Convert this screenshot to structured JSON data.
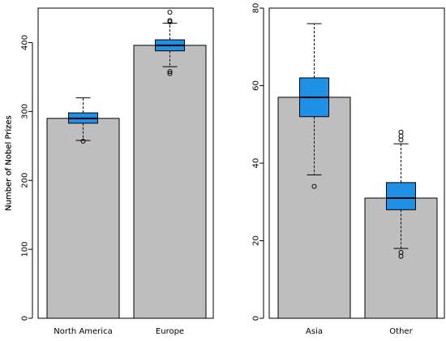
{
  "chart_data": [
    {
      "type": "bar",
      "categories": [
        "North America",
        "Europe"
      ],
      "values": [
        290,
        396
      ],
      "ylabel": "Number of Nobel Prizes",
      "ylim": [
        0,
        450
      ],
      "yticks": [
        0,
        100,
        200,
        300,
        400
      ],
      "grid": false,
      "bar_color": "#bebebe",
      "box_color": "#1e90e6",
      "boxplots": [
        {
          "category": "North America",
          "whisker_low": 258,
          "q1": 283,
          "median": 290,
          "q3": 298,
          "whisker_high": 320,
          "outliers": [
            257
          ]
        },
        {
          "category": "Europe",
          "whisker_low": 365,
          "q1": 388,
          "median": 396,
          "q3": 404,
          "whisker_high": 428,
          "outliers": [
            355,
            358,
            430,
            432,
            444
          ]
        }
      ]
    },
    {
      "type": "bar",
      "categories": [
        "Asia",
        "Other"
      ],
      "values": [
        57,
        31
      ],
      "ylabel": "Number of Nobel Prizes",
      "ylim": [
        0,
        80
      ],
      "yticks": [
        0,
        20,
        40,
        60,
        80
      ],
      "grid": false,
      "bar_color": "#bebebe",
      "box_color": "#1e90e6",
      "boxplots": [
        {
          "category": "Asia",
          "whisker_low": 37,
          "q1": 52,
          "median": 57,
          "q3": 62,
          "whisker_high": 76,
          "outliers": [
            34
          ]
        },
        {
          "category": "Other",
          "whisker_low": 18,
          "q1": 28,
          "median": 31,
          "q3": 35,
          "whisker_high": 45,
          "outliers": [
            16,
            17,
            46,
            47,
            48
          ]
        }
      ]
    }
  ]
}
